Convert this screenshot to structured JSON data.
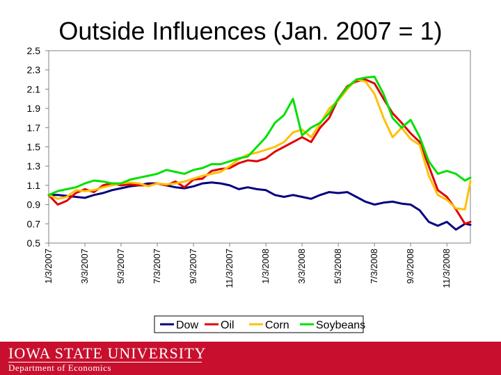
{
  "slide": {
    "title": "Outside Influences (Jan. 2007 = 1)"
  },
  "footer": {
    "university": "IOWA STATE UNIVERSITY",
    "department": "Department of Economics",
    "background": "#c8102e"
  },
  "chart_data": {
    "type": "line",
    "title": "Outside Influences (Jan. 2007 = 1)",
    "xlabel": "",
    "ylabel": "",
    "ylim": [
      0.5,
      2.5
    ],
    "yticks": [
      0.5,
      0.7,
      0.9,
      1.1,
      1.3,
      1.5,
      1.7,
      1.9,
      2.1,
      2.3,
      2.5
    ],
    "ytick_labels": [
      "0.5",
      "0.7",
      "0.9",
      "1.1",
      "1.3",
      "1.5",
      "1.7",
      "1.9",
      "2.1",
      "2.3",
      "2.5"
    ],
    "x_months_range": [
      0,
      23.3
    ],
    "xticks": [
      0,
      2,
      4,
      6,
      8,
      10,
      12,
      14,
      16,
      18,
      20,
      22
    ],
    "xtick_labels": [
      "1/3/2007",
      "3/3/2007",
      "5/3/2007",
      "7/3/2007",
      "9/3/2007",
      "11/3/2007",
      "1/3/2008",
      "3/3/2008",
      "5/3/2008",
      "7/3/2008",
      "9/3/2008",
      "11/3/2008"
    ],
    "grid": false,
    "legend": "bottom",
    "x": [
      0,
      0.5,
      1,
      1.5,
      2,
      2.5,
      3,
      3.5,
      4,
      4.5,
      5,
      5.5,
      6,
      6.5,
      7,
      7.5,
      8,
      8.5,
      9,
      9.5,
      10,
      10.5,
      11,
      11.5,
      12,
      12.5,
      13,
      13.5,
      14,
      14.5,
      15,
      15.5,
      16,
      16.5,
      17,
      17.5,
      18,
      18.5,
      19,
      19.5,
      20,
      20.5,
      21,
      21.5,
      22,
      22.5,
      23,
      23.3
    ],
    "series": [
      {
        "name": "Dow",
        "color": "#000080",
        "values": [
          1.0,
          1.0,
          0.99,
          0.98,
          0.97,
          1.0,
          1.02,
          1.05,
          1.07,
          1.09,
          1.1,
          1.12,
          1.12,
          1.1,
          1.08,
          1.07,
          1.09,
          1.12,
          1.13,
          1.12,
          1.1,
          1.06,
          1.08,
          1.06,
          1.05,
          1.0,
          0.98,
          1.0,
          0.98,
          0.96,
          1.0,
          1.03,
          1.02,
          1.03,
          0.98,
          0.93,
          0.9,
          0.92,
          0.93,
          0.91,
          0.9,
          0.84,
          0.72,
          0.68,
          0.72,
          0.64,
          0.7,
          0.69
        ]
      },
      {
        "name": "Oil",
        "color": "#e00000",
        "values": [
          1.0,
          0.9,
          0.94,
          1.02,
          1.06,
          1.03,
          1.1,
          1.12,
          1.1,
          1.11,
          1.1,
          1.1,
          1.12,
          1.1,
          1.14,
          1.08,
          1.16,
          1.17,
          1.25,
          1.27,
          1.28,
          1.33,
          1.36,
          1.35,
          1.38,
          1.45,
          1.5,
          1.55,
          1.6,
          1.55,
          1.7,
          1.8,
          2.0,
          2.13,
          2.18,
          2.2,
          2.16,
          2.0,
          1.85,
          1.75,
          1.64,
          1.55,
          1.3,
          1.05,
          0.98,
          0.85,
          0.7,
          0.72
        ]
      },
      {
        "name": "Corn",
        "color": "#ffc000",
        "values": [
          1.0,
          0.96,
          0.98,
          1.05,
          1.04,
          1.05,
          1.08,
          1.1,
          1.12,
          1.13,
          1.12,
          1.09,
          1.12,
          1.11,
          1.12,
          1.14,
          1.17,
          1.2,
          1.22,
          1.24,
          1.3,
          1.37,
          1.42,
          1.44,
          1.47,
          1.5,
          1.55,
          1.65,
          1.68,
          1.6,
          1.74,
          1.9,
          1.98,
          2.1,
          2.2,
          2.18,
          2.05,
          1.8,
          1.6,
          1.7,
          1.58,
          1.52,
          1.2,
          1.0,
          0.95,
          0.86,
          0.85,
          1.14
        ]
      },
      {
        "name": "Soybeans",
        "color": "#00e000",
        "values": [
          1.0,
          1.04,
          1.06,
          1.08,
          1.12,
          1.15,
          1.14,
          1.12,
          1.12,
          1.16,
          1.18,
          1.2,
          1.22,
          1.26,
          1.24,
          1.22,
          1.26,
          1.28,
          1.32,
          1.32,
          1.35,
          1.38,
          1.4,
          1.5,
          1.6,
          1.75,
          1.83,
          2.0,
          1.62,
          1.7,
          1.75,
          1.85,
          2.0,
          2.12,
          2.2,
          2.22,
          2.23,
          2.05,
          1.8,
          1.7,
          1.78,
          1.6,
          1.35,
          1.22,
          1.25,
          1.22,
          1.15,
          1.18
        ]
      }
    ]
  }
}
